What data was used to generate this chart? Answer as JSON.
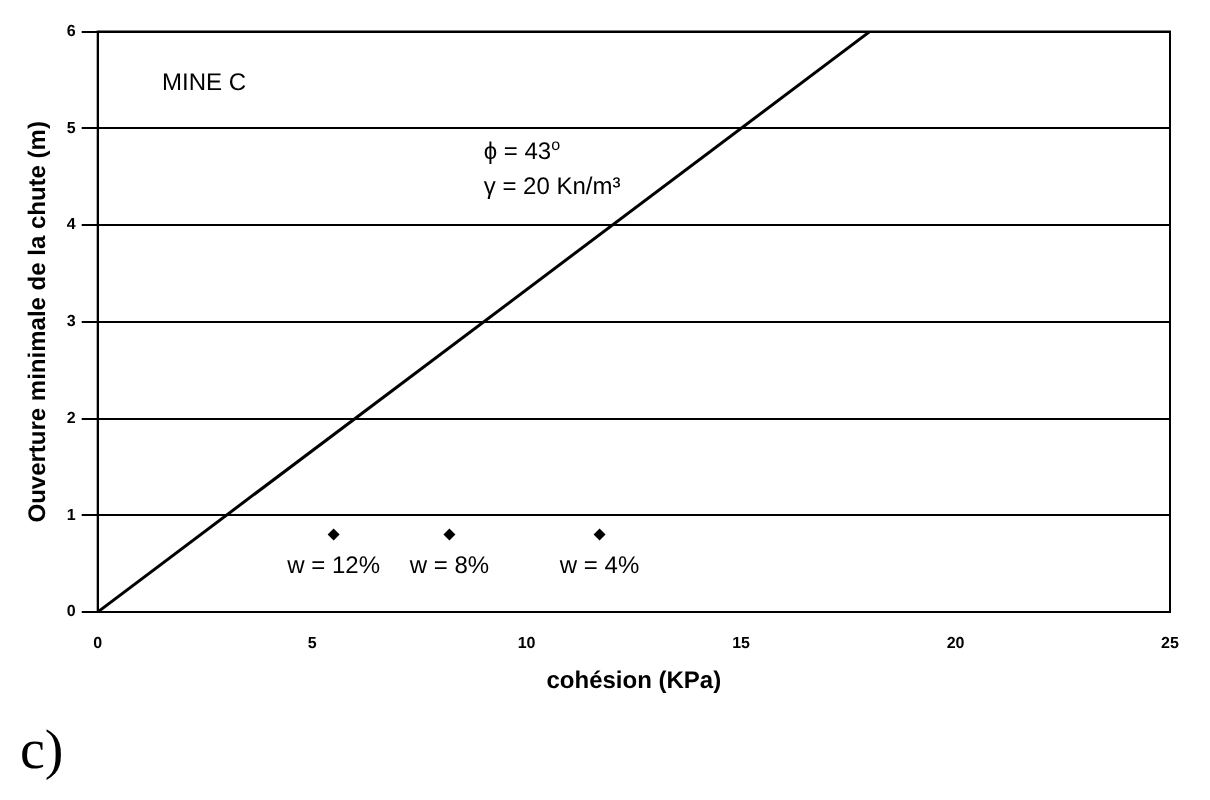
{
  "chart_data": {
    "type": "line",
    "xlabel": "cohésion (KPa)",
    "ylabel": "Ouverture minimale de la chute (m)",
    "xlim": [
      0,
      25
    ],
    "xticks": [
      0,
      5,
      10,
      15,
      20,
      25
    ],
    "ylim": [
      0,
      6
    ],
    "yticks": [
      0,
      1,
      2,
      3,
      4,
      5,
      6
    ],
    "grid": "y",
    "legend": false,
    "series": [
      {
        "color": "#000000",
        "x": [
          0,
          18
        ],
        "values": [
          0,
          6
        ],
        "marker": "none",
        "line_style": "solid"
      },
      {
        "type": "scatter",
        "color": "#000000",
        "x": [
          5.5,
          8.2,
          11.7
        ],
        "values": [
          0.8,
          0.8,
          0.8
        ],
        "marker": "diamond"
      }
    ],
    "annotations": [
      "MINE C",
      "ϕ = 43$^{o}$",
      "γ = 20 Kn/m³",
      "c)",
      {
        "text": "w = 12%",
        "x": 5.5,
        "y": 0.8
      },
      {
        "text": "w = 8%",
        "x": 8.2,
        "y": 0.8
      },
      {
        "text": "w = 4%",
        "x": 11.7,
        "y": 0.8
      }
    ]
  }
}
